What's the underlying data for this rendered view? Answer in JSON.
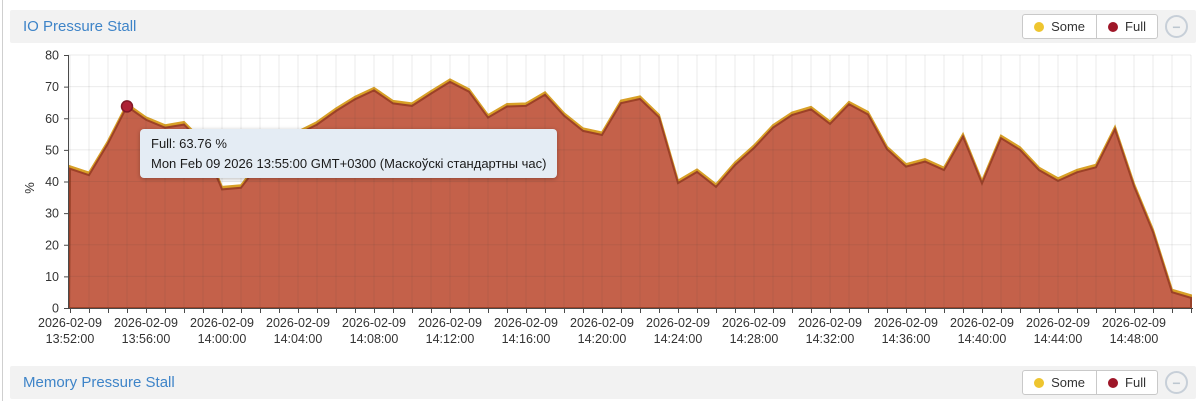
{
  "panels": [
    {
      "title": "IO Pressure Stall",
      "legend": {
        "some": "Some",
        "full": "Full"
      },
      "collapse_icon": "−"
    },
    {
      "title": "Memory Pressure Stall",
      "legend": {
        "some": "Some",
        "full": "Full"
      },
      "collapse_icon": "−"
    }
  ],
  "tooltip": {
    "value_line": "Full: 63.76 %",
    "time_line": "Mon Feb 09 2026 13:55:00 GMT+0300 (Маскоўскі стандартны час)"
  },
  "colors": {
    "title_blue": "#3e84c8",
    "header_bg": "#f2f2f2",
    "legend_some_dot": "#eec52f",
    "legend_full_dot": "#9e1628",
    "some_line": "#d8a027",
    "full_fill": "#c4614a",
    "full_stroke": "#9d4127",
    "hover_dot_fill": "#ae2135",
    "hover_dot_stroke": "#811926",
    "axis": "#4a4a4a",
    "grid": "rgba(60,60,60,0.10)",
    "label_text": "#333333",
    "tooltip_bg": "#e4ecf4"
  },
  "chart_data": {
    "type": "area",
    "title": "IO Pressure Stall",
    "ylabel": "%",
    "ylim": [
      0,
      80
    ],
    "yticks": [
      0,
      10,
      20,
      30,
      40,
      50,
      60,
      70,
      80
    ],
    "grid": true,
    "legend_position": "top-right",
    "x_start": "2026-02-09 13:52:00",
    "x_step_seconds": 60,
    "x_tick_every_minutes": 4,
    "x_tick_labels": [
      {
        "date": "2026-02-09",
        "time": "13:52:00"
      },
      {
        "date": "2026-02-09",
        "time": "13:56:00"
      },
      {
        "date": "2026-02-09",
        "time": "14:00:00"
      },
      {
        "date": "2026-02-09",
        "time": "14:04:00"
      },
      {
        "date": "2026-02-09",
        "time": "14:08:00"
      },
      {
        "date": "2026-02-09",
        "time": "14:12:00"
      },
      {
        "date": "2026-02-09",
        "time": "14:16:00"
      },
      {
        "date": "2026-02-09",
        "time": "14:20:00"
      },
      {
        "date": "2026-02-09",
        "time": "14:24:00"
      },
      {
        "date": "2026-02-09",
        "time": "14:28:00"
      },
      {
        "date": "2026-02-09",
        "time": "14:32:00"
      },
      {
        "date": "2026-02-09",
        "time": "14:36:00"
      },
      {
        "date": "2026-02-09",
        "time": "14:40:00"
      },
      {
        "date": "2026-02-09",
        "time": "14:44:00"
      },
      {
        "date": "2026-02-09",
        "time": "14:48:00"
      }
    ],
    "series": [
      {
        "name": "Some",
        "values": [
          44.8,
          42.8,
          52.8,
          64.56,
          60.3,
          57.8,
          58.8,
          52.8,
          38.3,
          38.8,
          46.8,
          51.8,
          55.8,
          58.8,
          63.1,
          66.8,
          69.6,
          65.5,
          64.7,
          68.6,
          72.3,
          69.2,
          61,
          64.5,
          64.7,
          68.2,
          61.6,
          56.8,
          55.5,
          65.6,
          66.9,
          61.1,
          40.3,
          43.8,
          39.1,
          46,
          51.4,
          57.8,
          61.8,
          63.6,
          59,
          65.2,
          62,
          51,
          45.5,
          47.1,
          44.4,
          55,
          40.2,
          54.5,
          50.8,
          44.4,
          41,
          43.7,
          45.3,
          57.3,
          39.3,
          24.8,
          5.8,
          4
        ]
      },
      {
        "name": "Full",
        "values": [
          44,
          42,
          52,
          63.76,
          59.5,
          57,
          58,
          52,
          37.5,
          38,
          46,
          51,
          55,
          58,
          62.3,
          66,
          68.8,
          64.7,
          63.9,
          67.8,
          71.5,
          68.4,
          60.2,
          63.7,
          63.9,
          67.4,
          60.8,
          56,
          54.7,
          64.8,
          66.1,
          60.3,
          39.5,
          43,
          38.3,
          45.2,
          50.6,
          57,
          61,
          62.8,
          58.2,
          64.4,
          61.2,
          50.2,
          44.7,
          46.3,
          43.6,
          54.2,
          39.4,
          53.7,
          50,
          43.6,
          40.2,
          42.9,
          44.5,
          56.5,
          38.5,
          24,
          5,
          3.2
        ]
      }
    ],
    "highlight": {
      "series": "Full",
      "index": 3,
      "value": 63.76,
      "time": "13:55:00"
    }
  }
}
